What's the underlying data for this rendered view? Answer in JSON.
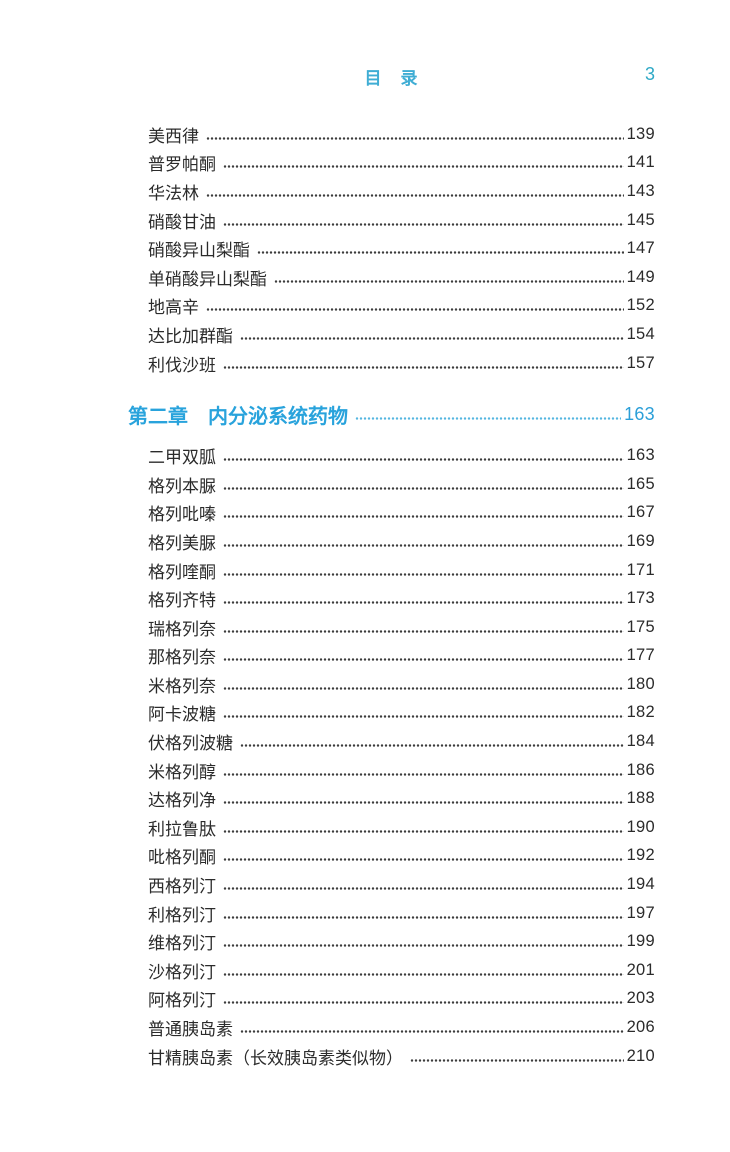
{
  "page": {
    "header_title": "目　录",
    "page_number": "3"
  },
  "colors": {
    "title_blue": "#3fadd4",
    "folio_teal": "#2fa9c6",
    "chapter_blue": "#29a3dc",
    "body_text": "#2b2b2b",
    "dot_leader": "#3c3c3c"
  },
  "toc": {
    "chapter1_entries": [
      {
        "label": "美西律",
        "page": "139"
      },
      {
        "label": "普罗帕酮",
        "page": "141"
      },
      {
        "label": "华法林",
        "page": "143"
      },
      {
        "label": "硝酸甘油",
        "page": "145"
      },
      {
        "label": "硝酸异山梨酯",
        "page": "147"
      },
      {
        "label": "单硝酸异山梨酯",
        "page": "149"
      },
      {
        "label": "地高辛",
        "page": "152"
      },
      {
        "label": "达比加群酯",
        "page": "154"
      },
      {
        "label": "利伐沙班",
        "page": "157"
      }
    ],
    "chapter2": {
      "label": "第二章　内分泌系统药物",
      "page": "163"
    },
    "chapter2_entries": [
      {
        "label": "二甲双胍",
        "page": "163"
      },
      {
        "label": "格列本脲",
        "page": "165"
      },
      {
        "label": "格列吡嗪",
        "page": "167"
      },
      {
        "label": "格列美脲",
        "page": "169"
      },
      {
        "label": "格列喹酮",
        "page": "171"
      },
      {
        "label": "格列齐特",
        "page": "173"
      },
      {
        "label": "瑞格列奈",
        "page": "175"
      },
      {
        "label": "那格列奈",
        "page": "177"
      },
      {
        "label": "米格列奈",
        "page": "180"
      },
      {
        "label": "阿卡波糖",
        "page": "182"
      },
      {
        "label": "伏格列波糖",
        "page": "184"
      },
      {
        "label": "米格列醇",
        "page": "186"
      },
      {
        "label": "达格列净",
        "page": "188"
      },
      {
        "label": "利拉鲁肽",
        "page": "190"
      },
      {
        "label": "吡格列酮",
        "page": "192"
      },
      {
        "label": "西格列汀",
        "page": "194"
      },
      {
        "label": "利格列汀",
        "page": "197"
      },
      {
        "label": "维格列汀",
        "page": "199"
      },
      {
        "label": "沙格列汀",
        "page": "201"
      },
      {
        "label": "阿格列汀",
        "page": "203"
      },
      {
        "label": "普通胰岛素",
        "page": "206"
      },
      {
        "label": "甘精胰岛素（长效胰岛素类似物）",
        "page": "210"
      }
    ]
  }
}
